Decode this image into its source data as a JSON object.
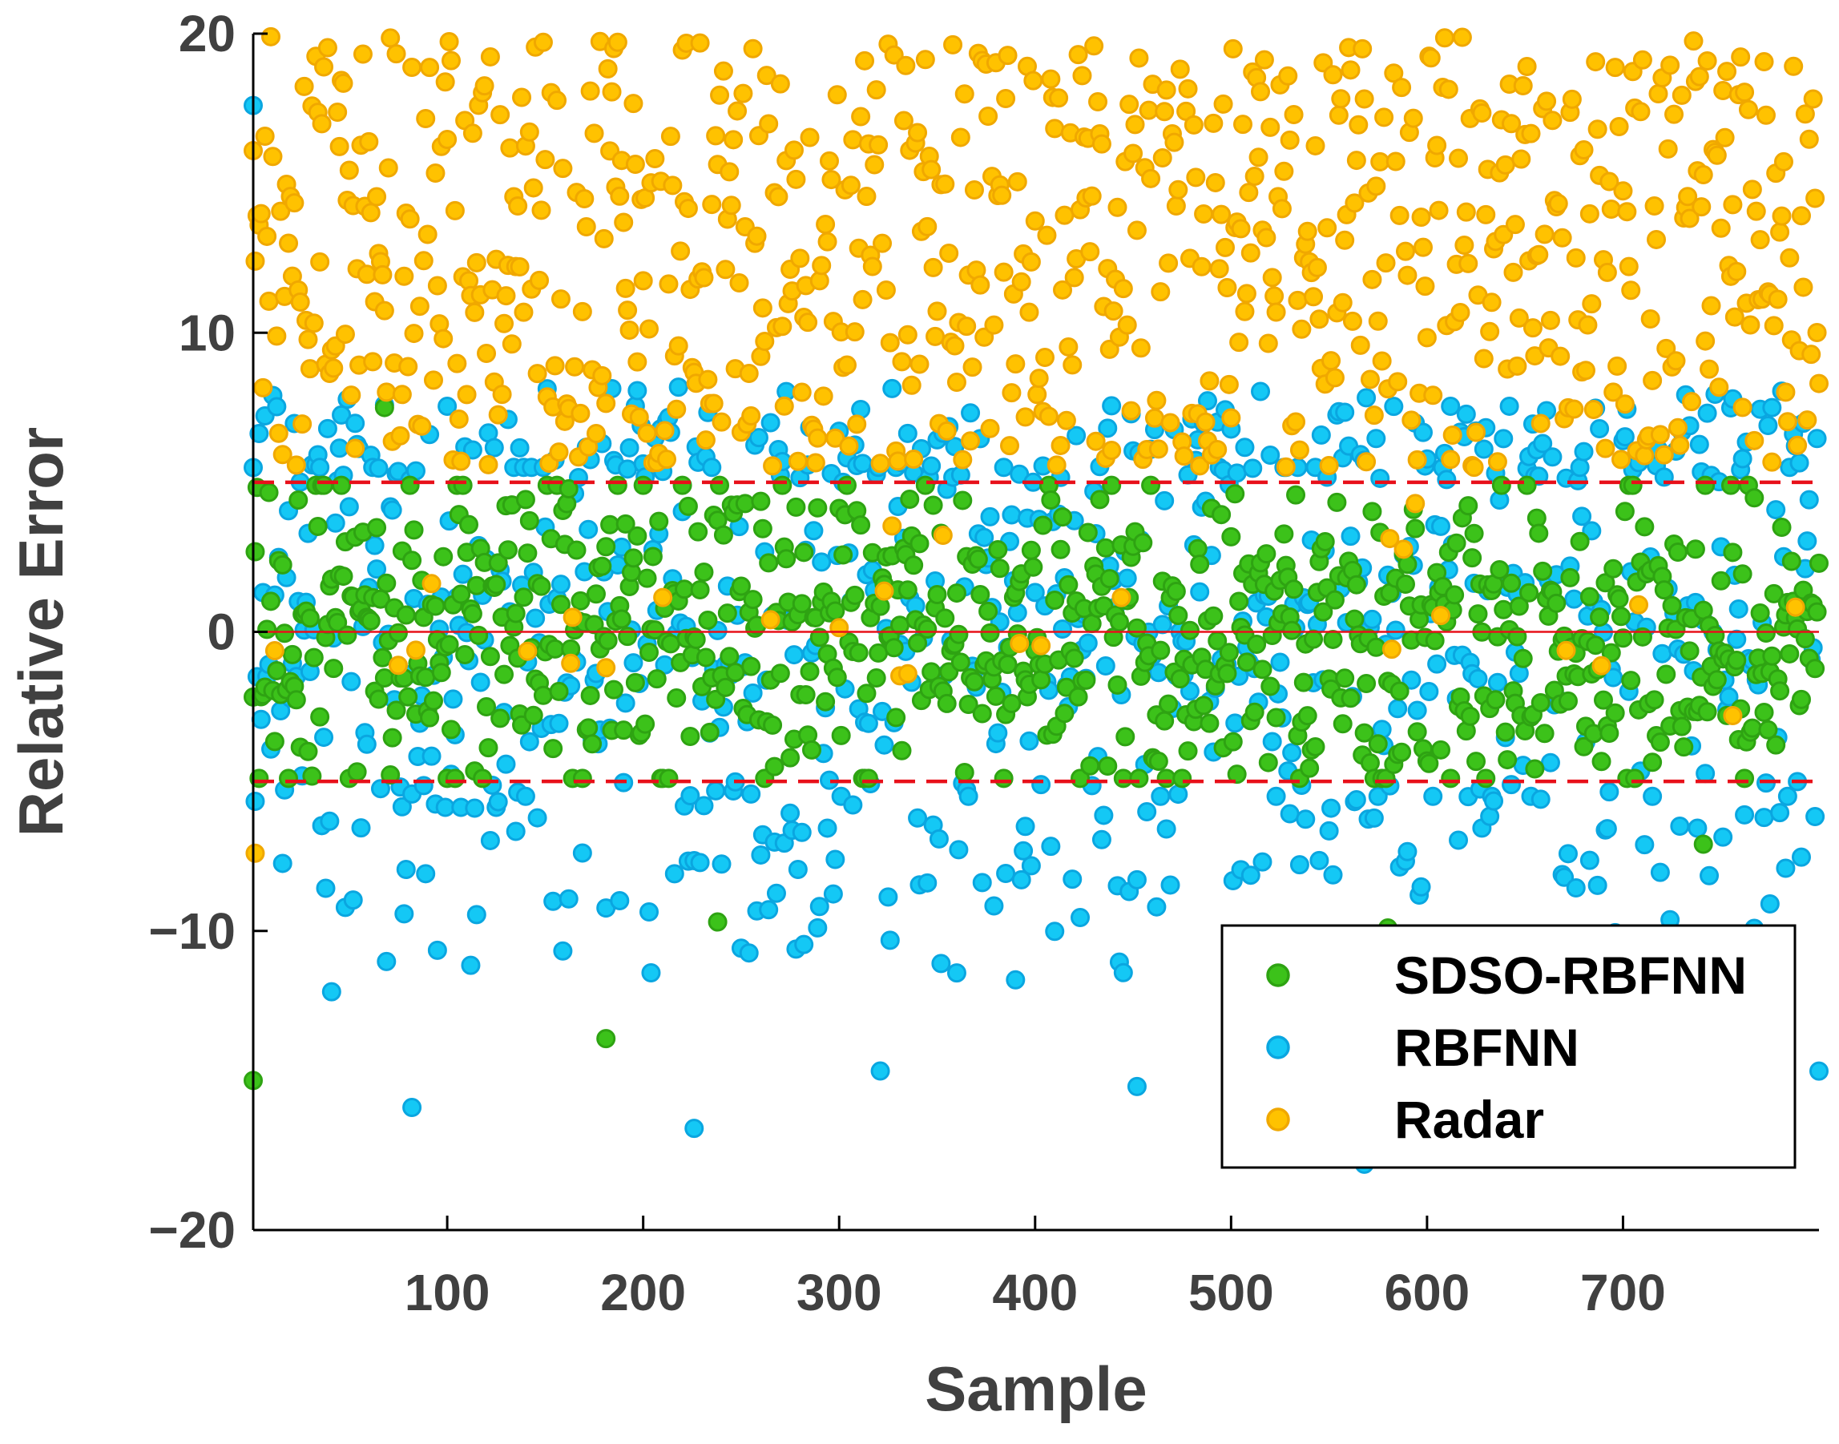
{
  "chart_data": {
    "type": "scatter",
    "title": "",
    "xlabel": "Sample",
    "ylabel": "Relative Error",
    "xlim": [
      1,
      800
    ],
    "ylim": [
      -20,
      20
    ],
    "x_ticks": [
      100,
      200,
      300,
      400,
      500,
      600,
      700
    ],
    "x_tick_labels": [
      "100",
      "200",
      "300",
      "400",
      "500",
      "600",
      "700"
    ],
    "y_ticks": [
      -20,
      -10,
      0,
      10,
      20
    ],
    "y_tick_labels": [
      "−20",
      "−10",
      "0",
      "10",
      "20"
    ],
    "reference_lines": [
      {
        "y": 0,
        "style": "solid",
        "color": "#e8101a"
      },
      {
        "y": 5,
        "style": "dashed",
        "color": "#e8101a"
      },
      {
        "y": -5,
        "style": "dashed",
        "color": "#e8101a"
      }
    ],
    "legend_position": "bottom-right",
    "series": [
      {
        "name": "SDSO-RBFNN",
        "fill": "#3cc21a",
        "edge": "#2ea312",
        "count": 800,
        "distribution": "approximately within [-5, 5], mostly [-4.5, 4.5], rare outliers to -15",
        "outliers": [
          {
            "x": 1,
            "y": -15
          },
          {
            "x": 181,
            "y": -13.6
          },
          {
            "x": 238,
            "y": -9.7
          },
          {
            "x": 68,
            "y": 7.5
          },
          {
            "x": 741,
            "y": -7.1
          },
          {
            "x": 580,
            "y": -9.9
          }
        ]
      },
      {
        "name": "RBFNN",
        "fill": "#14c8f5",
        "edge": "#0aa6e0",
        "count": 800,
        "distribution": "approximately within [-17, 18], mostly [-8, 8]",
        "outliers": [
          {
            "x": 1,
            "y": 17.6
          },
          {
            "x": 568,
            "y": -17.8
          },
          {
            "x": 226,
            "y": -16.6
          },
          {
            "x": 82,
            "y": -15.9
          },
          {
            "x": 452,
            "y": -15.2
          }
        ]
      },
      {
        "name": "Radar",
        "fill": "#ffc200",
        "edge": "#f0a800",
        "count": 800,
        "distribution": "approximately within [5, 20], with a few points in [-3, 5]",
        "outliers": [
          {
            "x": 2,
            "y": -7.4
          },
          {
            "x": 756,
            "y": -2.8
          },
          {
            "x": 181,
            "y": -1.2
          },
          {
            "x": 335,
            "y": -1.4
          }
        ]
      }
    ]
  }
}
